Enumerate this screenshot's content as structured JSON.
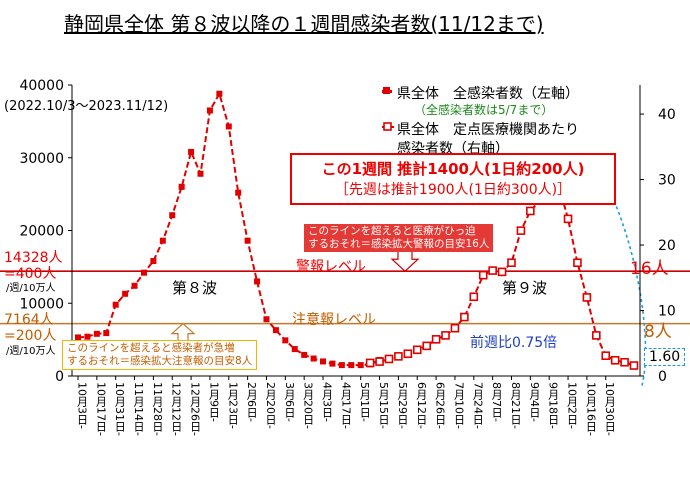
{
  "title": "静岡県全体 第８波以降の１週間感染者数(11/12まで)",
  "period": "(2022.10/3～2023.11/12)",
  "legend": {
    "series1": "県全体　全感染者数（左軸）",
    "series1_note": "（全感染者数は5/7まで）",
    "series2_line1": "県全体　定点医療機関あたり",
    "series2_line2": "感染者数（右軸）"
  },
  "highlight": {
    "line1": "この1週間 推計1400人(1日約200人)",
    "line2": "［先週は推計1900人(1日約300人)］"
  },
  "warning": {
    "label": "警報レベル",
    "right_label": "16人",
    "left_value": "14328人",
    "left_per": "=400人",
    "left_unit": "/週/10万人",
    "note_line1": "このラインを超えると医療がひっ迫",
    "note_line2": "するおそれ＝感染拡大警報の目安16人"
  },
  "caution": {
    "label": "注意報レベル",
    "right_label": "8人",
    "left_value": "7164人",
    "left_per": "=200人",
    "left_unit": "/週/10万人",
    "note_line1": "このラインを超えると感染者が急増",
    "note_line2": "するおそれ＝感染拡大注意報の目安8人"
  },
  "wave8_label": "第８波",
  "wave9_label": "第９波",
  "ratio_label": "前週比0.75倍",
  "latest_label": "1.60",
  "colors": {
    "series": "#e00000",
    "warning": "#cc0000",
    "caution": "#c8782a",
    "callout": "#1a9fd8",
    "ratio": "#1f3fbf"
  },
  "chart_data": {
    "type": "line",
    "x_tick_labels": [
      "10月3日-",
      "10月17日-",
      "10月31日-",
      "11月14日-",
      "11月28日-",
      "12月12日-",
      "12月26日-",
      "1月9日-",
      "1月23日-",
      "2月6日-",
      "2月20日-",
      "3月6日-",
      "3月20日-",
      "4月3日-",
      "4月17日-",
      "5月1日-",
      "5月15日-",
      "5月29日-",
      "6月12日-",
      "6月26日-",
      "7月10日-",
      "7月24日-",
      "8月7日-",
      "8月21日-",
      "9月4日-",
      "9月18日-",
      "10月2日-",
      "10月16日-",
      "10月30日-"
    ],
    "left_axis": {
      "min": 0,
      "max": 40000,
      "ticks": [
        "0",
        "10000",
        "20000",
        "30000",
        "40000"
      ]
    },
    "right_axis": {
      "min": 0,
      "max": 44.44,
      "ticks": [
        "0",
        "10",
        "20",
        "30",
        "40"
      ]
    },
    "series": [
      {
        "name": "県全体　全感染者数（左軸）",
        "axis": "left",
        "marker": "filled-square",
        "values": [
          5300,
          5400,
          5800,
          5900,
          9800,
          11300,
          12400,
          14200,
          15800,
          18600,
          22100,
          26000,
          30800,
          27800,
          36500,
          38800,
          34300,
          25200,
          18600,
          13000,
          7800,
          6300,
          4900,
          3700,
          2900,
          2400,
          2000,
          1700,
          1500,
          1500,
          1500,
          1600,
          2200
        ]
      },
      {
        "name": "県全体　定点医療機関あたり感染者数（右軸）",
        "axis": "right",
        "marker": "open-square",
        "start_week": 31,
        "values": [
          2.0,
          2.2,
          2.6,
          3.0,
          3.4,
          4.0,
          4.6,
          5.6,
          6.2,
          7.3,
          9.0,
          12.1,
          15.4,
          16.1,
          15.9,
          17.3,
          22.2,
          25.2,
          26.8,
          29.6,
          29.2,
          24.0,
          17.3,
          12.0,
          6.2,
          3.1,
          2.4,
          2.1,
          1.6
        ]
      }
    ],
    "reference_lines": [
      {
        "name": "警報レベル",
        "right_value": 16,
        "left_value": 14328
      },
      {
        "name": "注意報レベル",
        "right_value": 8,
        "left_value": 7164
      }
    ]
  }
}
